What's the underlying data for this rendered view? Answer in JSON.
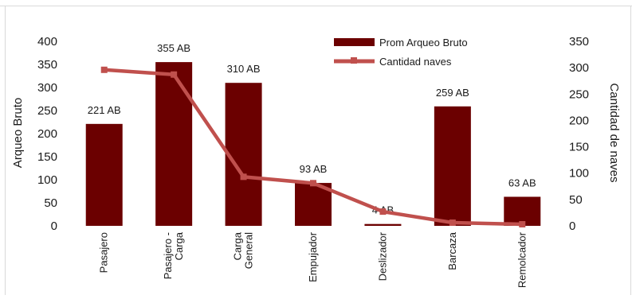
{
  "chart_data": {
    "type": "bar",
    "categories": [
      "Pasajero",
      "Pasajero - Carga",
      "Carga General",
      "Empujador",
      "Deslizador",
      "Barcaza",
      "Remolcador"
    ],
    "category_lines": [
      [
        "Pasajero"
      ],
      [
        "Pasajero -",
        "Carga"
      ],
      [
        "Carga",
        "General"
      ],
      [
        "Empujador"
      ],
      [
        "Deslizador"
      ],
      [
        "Barcaza"
      ],
      [
        "Remolcador"
      ]
    ],
    "series": [
      {
        "name": "Prom Arqueo Bruto",
        "kind": "bar",
        "axis": "left",
        "values": [
          221,
          355,
          310,
          93,
          4,
          259,
          63
        ],
        "data_labels": [
          "221 AB",
          "355 AB",
          "310 AB",
          "93 AB",
          "4 AB",
          "259 AB",
          "63 AB"
        ],
        "color": "#6b0000"
      },
      {
        "name": "Cantidad naves",
        "kind": "line",
        "axis": "right",
        "values": [
          296,
          287,
          93,
          81,
          27,
          6,
          3
        ],
        "color": "#c0504d"
      }
    ],
    "ylabel": "Arqueo Bruto",
    "y2label": "Cantidad de naves",
    "ylim": [
      0,
      400
    ],
    "y2lim": [
      0,
      350
    ],
    "yticks": [
      "400",
      "350",
      "300",
      "250",
      "200",
      "150",
      "100",
      "50",
      "0"
    ],
    "y2ticks": [
      "350",
      "300",
      "250",
      "200",
      "150",
      "100",
      "50",
      "0"
    ],
    "grid": false,
    "legend": "top-right"
  }
}
